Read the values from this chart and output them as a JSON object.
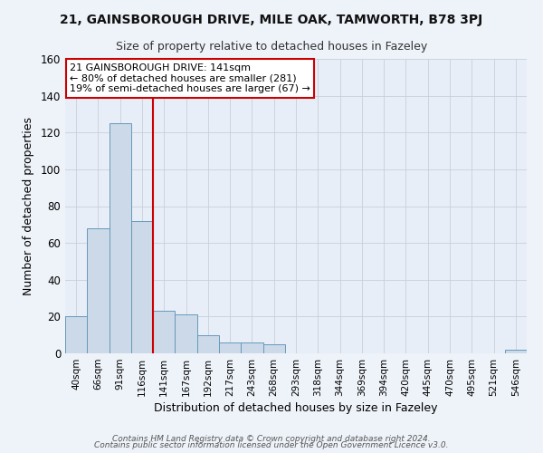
{
  "title": "21, GAINSBOROUGH DRIVE, MILE OAK, TAMWORTH, B78 3PJ",
  "subtitle": "Size of property relative to detached houses in Fazeley",
  "xlabel": "Distribution of detached houses by size in Fazeley",
  "ylabel": "Number of detached properties",
  "bin_labels": [
    "40sqm",
    "66sqm",
    "91sqm",
    "116sqm",
    "141sqm",
    "167sqm",
    "192sqm",
    "217sqm",
    "243sqm",
    "268sqm",
    "293sqm",
    "318sqm",
    "344sqm",
    "369sqm",
    "394sqm",
    "420sqm",
    "445sqm",
    "470sqm",
    "495sqm",
    "521sqm",
    "546sqm"
  ],
  "bar_heights": [
    20,
    68,
    125,
    72,
    23,
    21,
    10,
    6,
    6,
    5,
    0,
    0,
    0,
    0,
    0,
    0,
    0,
    0,
    0,
    0,
    2
  ],
  "bar_color": "#ccd9e8",
  "bar_edge_color": "#6699bb",
  "vline_x_index": 4,
  "vline_color": "#cc0000",
  "ylim": [
    0,
    160
  ],
  "yticks": [
    0,
    20,
    40,
    60,
    80,
    100,
    120,
    140,
    160
  ],
  "annotation_text": "21 GAINSBOROUGH DRIVE: 141sqm\n← 80% of detached houses are smaller (281)\n19% of semi-detached houses are larger (67) →",
  "annotation_box_color": "#ffffff",
  "annotation_box_edge": "#cc0000",
  "footer_line1": "Contains HM Land Registry data © Crown copyright and database right 2024.",
  "footer_line2": "Contains public sector information licensed under the Open Government Licence v3.0.",
  "plot_bg_color": "#e8eef8",
  "fig_bg_color": "#eef3fa",
  "grid_color": "#c8cfd8",
  "title_fontsize": 10,
  "subtitle_fontsize": 9,
  "xlabel_fontsize": 9,
  "ylabel_fontsize": 9,
  "tick_fontsize": 7.5,
  "annotation_fontsize": 8,
  "footer_fontsize": 6.5
}
